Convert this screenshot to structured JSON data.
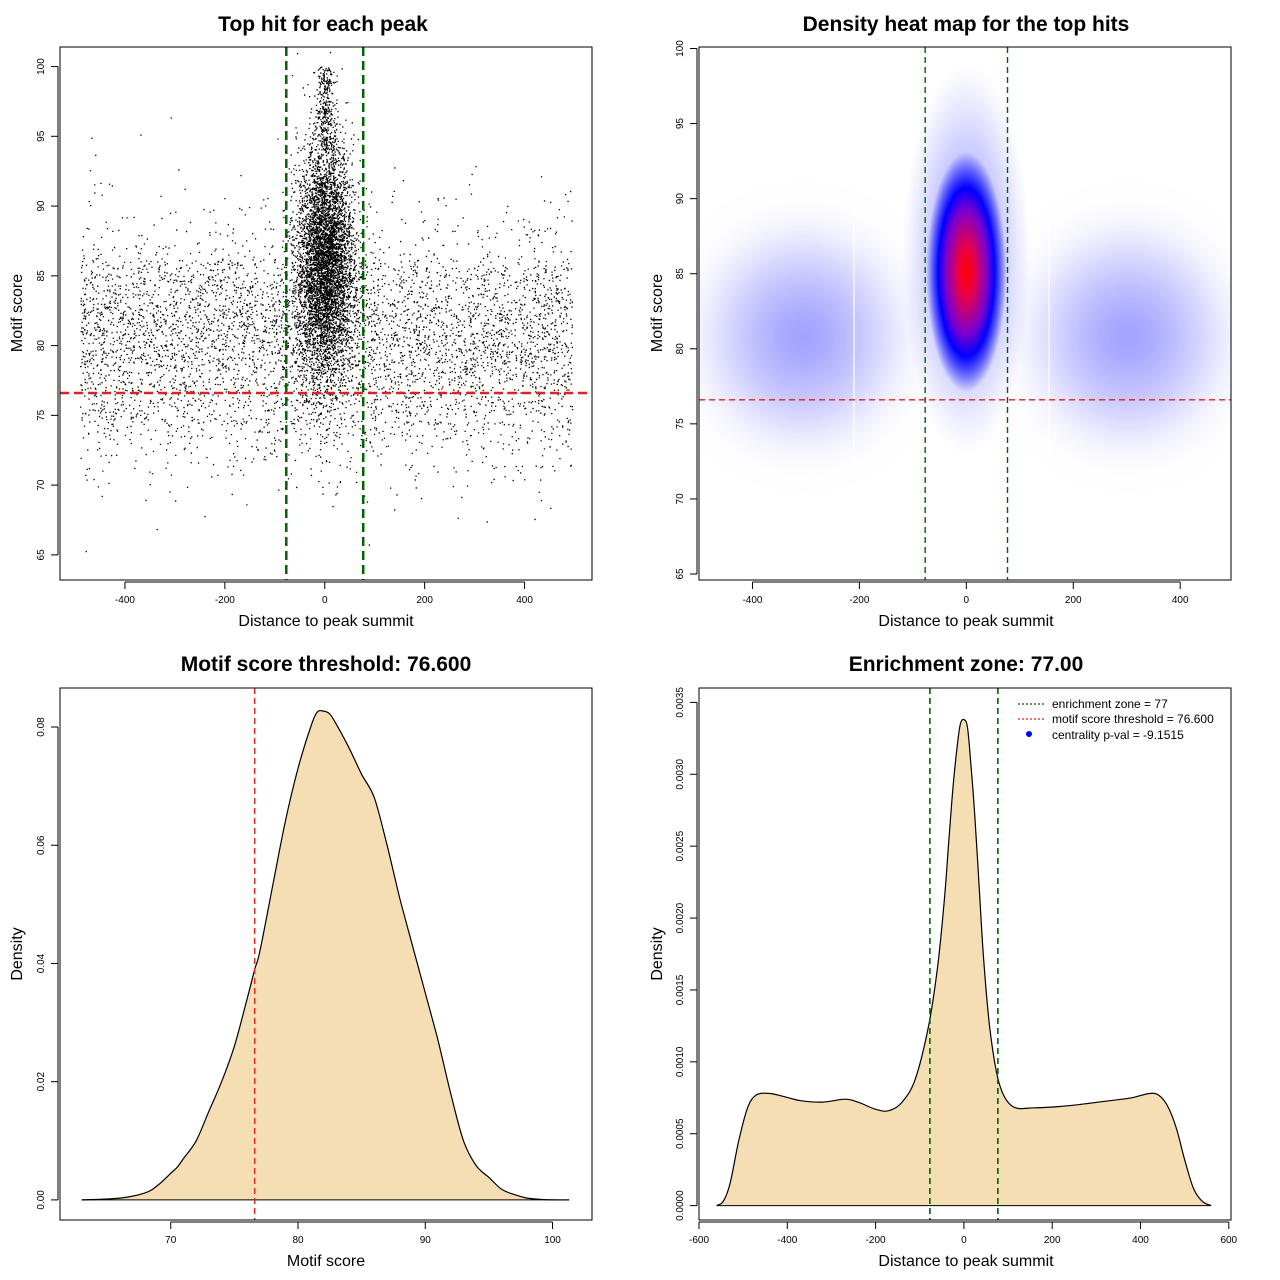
{
  "colors": {
    "points": "#000000",
    "enrichment_line": "#006400",
    "threshold_line": "#dd2222",
    "density_fill": "#f5deb3",
    "heat_low": "#0000ff",
    "heat_high": "#ff0000",
    "legend_dot": "#0000ff"
  },
  "chart_data": [
    {
      "type": "scatter",
      "title": "Top hit for each peak",
      "xlabel": "Distance to peak summit",
      "ylabel": "Motif score",
      "xlim": [
        -530,
        535
      ],
      "ylim": [
        63.2,
        101.4
      ],
      "xticks": [
        -400,
        -200,
        0,
        200,
        400
      ],
      "yticks": [
        65,
        70,
        75,
        80,
        85,
        90,
        95,
        100
      ],
      "xtick_labels": [
        "-400",
        "-200",
        "0",
        "200",
        "400"
      ],
      "ytick_labels": [
        "65",
        "70",
        "75",
        "80",
        "85",
        "90",
        "95",
        "100"
      ],
      "background_distribution": {
        "x_range": [
          -490,
          495
        ],
        "y_mean": 80.6,
        "y_sd": 4.4
      },
      "central_cluster": {
        "x_mean": 0,
        "x_sd": 28,
        "y_mean": 86.0,
        "y_sd": 4.2
      },
      "vlines": [
        -77,
        77
      ],
      "hline": 76.6,
      "grid": false
    },
    {
      "type": "heatmap",
      "title": "Density heat map for the top hits",
      "xlabel": "Distance to peak summit",
      "ylabel": "Motif score",
      "xlim": [
        -500,
        495
      ],
      "ylim": [
        64.6,
        100.1
      ],
      "xticks": [
        -400,
        -200,
        0,
        200,
        400
      ],
      "yticks": [
        65,
        70,
        75,
        80,
        85,
        90,
        95,
        100
      ],
      "xtick_labels": [
        "-400",
        "-200",
        "0",
        "200",
        "400"
      ],
      "ytick_labels": [
        "65",
        "70",
        "75",
        "80",
        "85",
        "90",
        "95",
        "100"
      ],
      "density_peak": {
        "x": 0,
        "y": 85.5
      },
      "vlines": [
        -77,
        77
      ],
      "hline": 76.6,
      "grid": false
    },
    {
      "type": "area",
      "title": "Motif score threshold: 76.600",
      "xlabel": "Motif score",
      "ylabel": "Density",
      "xlim": [
        61.3,
        103.1
      ],
      "ylim": [
        -0.0034,
        0.0866
      ],
      "xticks": [
        70,
        80,
        90,
        100
      ],
      "yticks": [
        0,
        0.02,
        0.04,
        0.06,
        0.08
      ],
      "xtick_labels": [
        "70",
        "80",
        "90",
        "100"
      ],
      "ytick_labels": [
        "0.00",
        "0.02",
        "0.04",
        "0.06",
        "0.08"
      ],
      "x": [
        63,
        66,
        68,
        69,
        70,
        70.5,
        71,
        72,
        73,
        74,
        75,
        76,
        76.6,
        77,
        78,
        79,
        80,
        81,
        81.5,
        82,
        82.5,
        83,
        84,
        85,
        86,
        87,
        88,
        89,
        90,
        91,
        92,
        93,
        94,
        95,
        96,
        97,
        98,
        99,
        100,
        101.3
      ],
      "y": [
        0,
        0.0003,
        0.0012,
        0.0025,
        0.0045,
        0.0055,
        0.007,
        0.01,
        0.015,
        0.02,
        0.026,
        0.034,
        0.039,
        0.042,
        0.053,
        0.064,
        0.073,
        0.08,
        0.0825,
        0.0827,
        0.0822,
        0.0805,
        0.0765,
        0.072,
        0.068,
        0.06,
        0.051,
        0.043,
        0.035,
        0.027,
        0.018,
        0.01,
        0.0058,
        0.0038,
        0.0018,
        0.0009,
        0.0003,
        0.0001,
        0,
        0
      ],
      "vline": 76.6,
      "grid": false
    },
    {
      "type": "area",
      "title": "Enrichment zone: 77.00",
      "xlabel": "Distance to peak summit",
      "ylabel": "Density",
      "xlim": [
        -600,
        605
      ],
      "ylim": [
        -0.0001,
        0.0036
      ],
      "xticks": [
        -600,
        -400,
        -200,
        0,
        200,
        400,
        600
      ],
      "yticks": [
        0,
        0.0005,
        0.001,
        0.0015,
        0.002,
        0.0025,
        0.003,
        0.0035
      ],
      "xtick_labels": [
        "-600",
        "-400",
        "-200",
        "0",
        "200",
        "400",
        "600"
      ],
      "ytick_labels": [
        "0.0000",
        "0.0005",
        "0.0010",
        "0.0015",
        "0.0020",
        "0.0025",
        "0.0030",
        "0.0035"
      ],
      "x": [
        -560,
        -545,
        -530,
        -510,
        -490,
        -470,
        -440,
        -410,
        -370,
        -320,
        -270,
        -240,
        -200,
        -170,
        -140,
        -110,
        -80,
        -60,
        -45,
        -35,
        -25,
        -15,
        -8,
        0,
        8,
        15,
        25,
        35,
        45,
        60,
        80,
        110,
        160,
        220,
        280,
        330,
        380,
        420,
        440,
        460,
        480,
        500,
        520,
        540,
        560
      ],
      "y": [
        0,
        3e-05,
        0.00015,
        0.00045,
        0.00068,
        0.00077,
        0.00078,
        0.00076,
        0.00073,
        0.00072,
        0.00074,
        0.00072,
        0.00067,
        0.00066,
        0.00072,
        0.00088,
        0.00125,
        0.00165,
        0.0021,
        0.0025,
        0.0029,
        0.0032,
        0.00335,
        0.00338,
        0.00333,
        0.0031,
        0.0027,
        0.0022,
        0.0017,
        0.0012,
        0.00085,
        0.00069,
        0.00068,
        0.00069,
        0.00071,
        0.00073,
        0.00075,
        0.00078,
        0.00077,
        0.0007,
        0.00055,
        0.00032,
        0.00012,
        3e-05,
        0
      ],
      "vlines": [
        -77,
        77
      ],
      "grid": false,
      "legend_position": "top-right",
      "legend": [
        {
          "label": "enrichment zone = 77",
          "style": "dotted-line",
          "color": "#006400"
        },
        {
          "label": "motif score threshold = 76.600",
          "style": "dotted-line",
          "color": "#dd2222"
        },
        {
          "label": "centrality p-val = -9.1515",
          "style": "dot",
          "color": "#0000ff"
        }
      ]
    }
  ]
}
